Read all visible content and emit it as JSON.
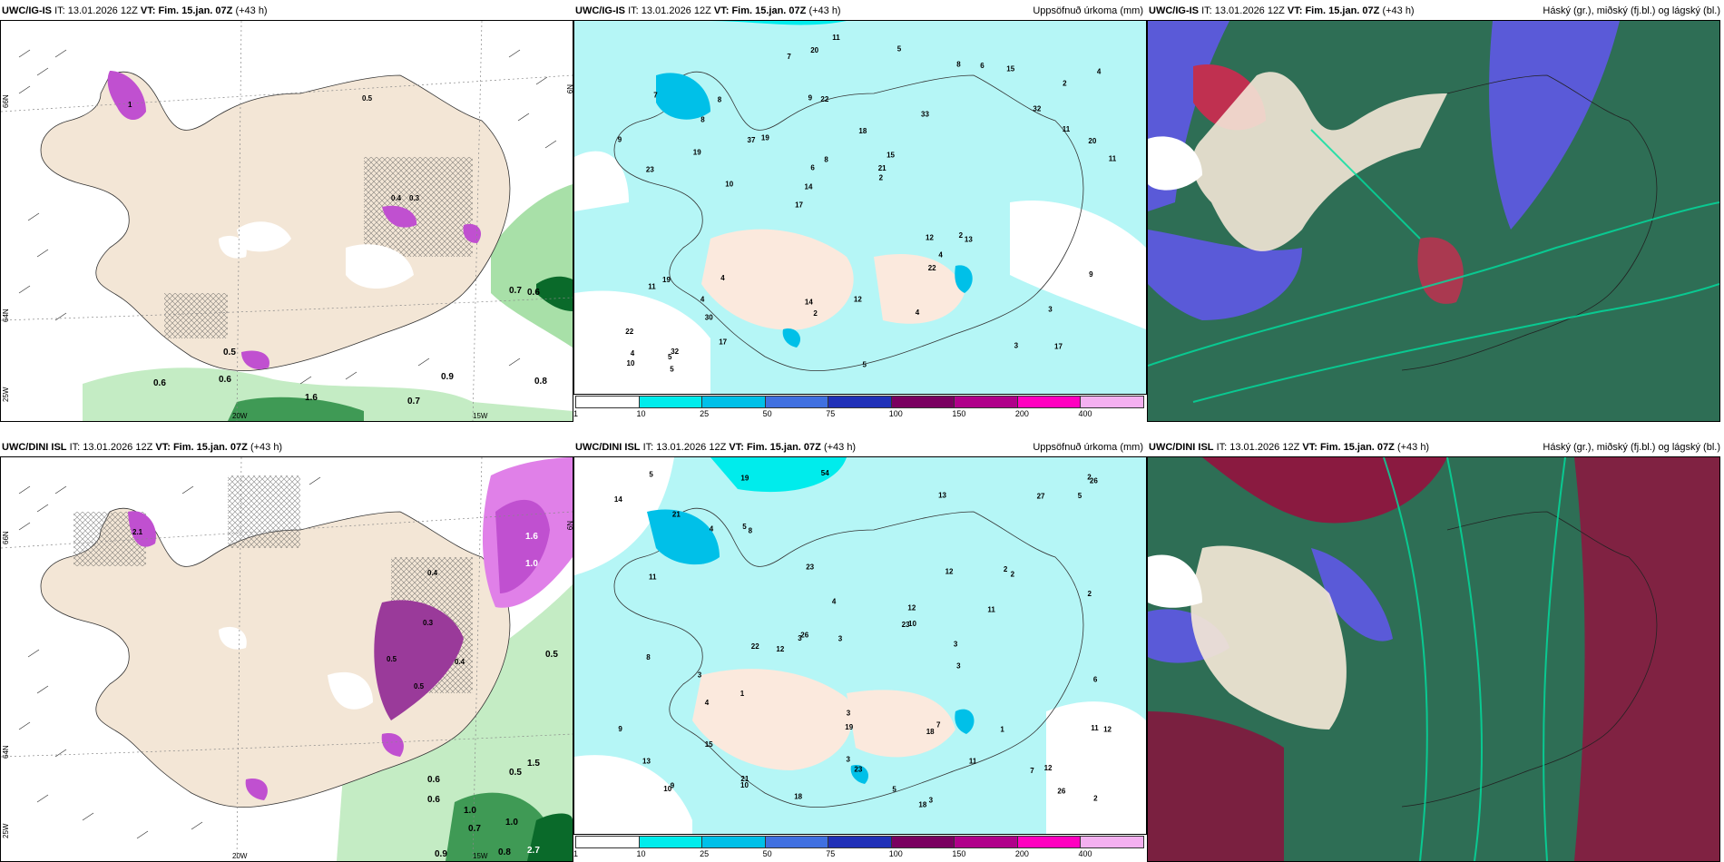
{
  "panels": [
    {
      "model": "UWC/IG-IS",
      "it_label": "IT:",
      "it_value": "13.01.2026 12Z",
      "vt_label": "VT:",
      "vt_value": "Fim. 15.jan. 07Z",
      "lead": "(+43 h)",
      "right_title": "",
      "lat_labels": [
        "66N",
        "64N"
      ],
      "lon_labels": [
        "20W",
        "15W"
      ],
      "side_labels": [
        "25W",
        "N9"
      ],
      "values": [
        "0.5",
        "0.6",
        "0.6",
        "0.9",
        "0.8",
        "0.7",
        "0.7",
        "0.6",
        "1.6",
        "0.5",
        "0.4",
        "0.3",
        "1"
      ]
    },
    {
      "model": "UWC/IG-IS",
      "it_label": "IT:",
      "it_value": "13.01.2026 12Z",
      "vt_label": "VT:",
      "vt_value": "Fim. 15.jan. 07Z",
      "lead": "(+43 h)",
      "right_title": "Uppsöfnuð úrkoma (mm)",
      "values": [
        "17",
        "23",
        "2",
        "17",
        "33",
        "32",
        "9",
        "18",
        "19",
        "19",
        "22",
        "30",
        "22",
        "15",
        "13",
        "7",
        "20",
        "11",
        "12",
        "11",
        "14",
        "14",
        "6",
        "8",
        "8",
        "4",
        "3",
        "3",
        "2",
        "5",
        "37",
        "19",
        "22",
        "17",
        "20",
        "21",
        "4",
        "2",
        "2",
        "11",
        "32",
        "4",
        "4",
        "4",
        "4",
        "5",
        "10",
        "12",
        "15",
        "11",
        "10",
        "9",
        "8",
        "6",
        "5",
        "5",
        "7",
        "8",
        "9"
      ],
      "legend_ticks": [
        "1",
        "10",
        "25",
        "50",
        "75",
        "100",
        "150",
        "200",
        "400"
      ]
    },
    {
      "model": "UWC/IG-IS",
      "it_label": "IT:",
      "it_value": "13.01.2026 12Z",
      "vt_label": "VT:",
      "vt_value": "Fim. 15.jan. 07Z",
      "lead": "(+43 h)",
      "right_title": "Háský (gr.), miðský (fj.bl.) og lágský (bl.)"
    },
    {
      "model": "UWC/DINI ISL",
      "it_label": "IT:",
      "it_value": "13.01.2026 12Z",
      "vt_label": "VT:",
      "vt_value": "Fim. 15.jan. 07Z",
      "lead": "(+43 h)",
      "right_title": "",
      "lat_labels": [
        "66N",
        "64N"
      ],
      "lon_labels": [
        "20W",
        "15W"
      ],
      "side_labels": [
        "25W",
        "N9"
      ],
      "values": [
        "1.6",
        "1.0",
        "0.5",
        "0.4",
        "0.3",
        "0.5",
        "0.4",
        "0.5",
        "0.6",
        "0.5",
        "1.0",
        "0.9",
        "0.8",
        "2.7",
        "1.0",
        "0.7",
        "0.6",
        "1.5",
        "2.1"
      ]
    },
    {
      "model": "UWC/DINI ISL",
      "it_label": "IT:",
      "it_value": "13.01.2026 12Z",
      "vt_label": "VT:",
      "vt_value": "Fim. 15.jan. 07Z",
      "lead": "(+43 h)",
      "right_title": "Uppsöfnuð úrkoma (mm)",
      "values": [
        "18",
        "18",
        "21",
        "11",
        "19",
        "21",
        "22",
        "26",
        "54",
        "23",
        "27",
        "23",
        "26",
        "19",
        "13",
        "23",
        "11",
        "10",
        "12",
        "14",
        "18",
        "26",
        "12",
        "10",
        "2",
        "3",
        "9",
        "4",
        "5",
        "3",
        "3",
        "3",
        "3",
        "5",
        "15",
        "3",
        "11",
        "13",
        "12",
        "12",
        "10",
        "11",
        "12",
        "9",
        "8",
        "7",
        "6",
        "5",
        "4",
        "3",
        "2",
        "2",
        "2",
        "1",
        "1",
        "2",
        "3",
        "4",
        "5",
        "8",
        "7"
      ],
      "legend_ticks": [
        "1",
        "10",
        "25",
        "50",
        "75",
        "100",
        "150",
        "200",
        "400"
      ]
    },
    {
      "model": "UWC/DINI ISL",
      "it_label": "IT:",
      "it_value": "13.01.2026 12Z",
      "vt_label": "VT:",
      "vt_value": "Fim. 15.jan. 07Z",
      "lead": "(+43 h)",
      "right_title": "Háský (gr.), miðský (fj.bl.) og lágský (bl.)"
    }
  ],
  "colors": {
    "land": "#f3e6d6",
    "sea_precip": "#b5f6f6",
    "legend": [
      "#ffffff",
      "#00ecec",
      "#00c0e8",
      "#4070e0",
      "#2030b8",
      "#7a0060",
      "#b0008a",
      "#ff00c0",
      "#f4b0f0"
    ],
    "purple": "#c050d0",
    "green_light": "#c4ecc4",
    "green_dark": "#0a6a2a",
    "cloud_high": "#2e6e55",
    "cloud_mid": "#5a5ad8",
    "cloud_low": "#c03050"
  }
}
